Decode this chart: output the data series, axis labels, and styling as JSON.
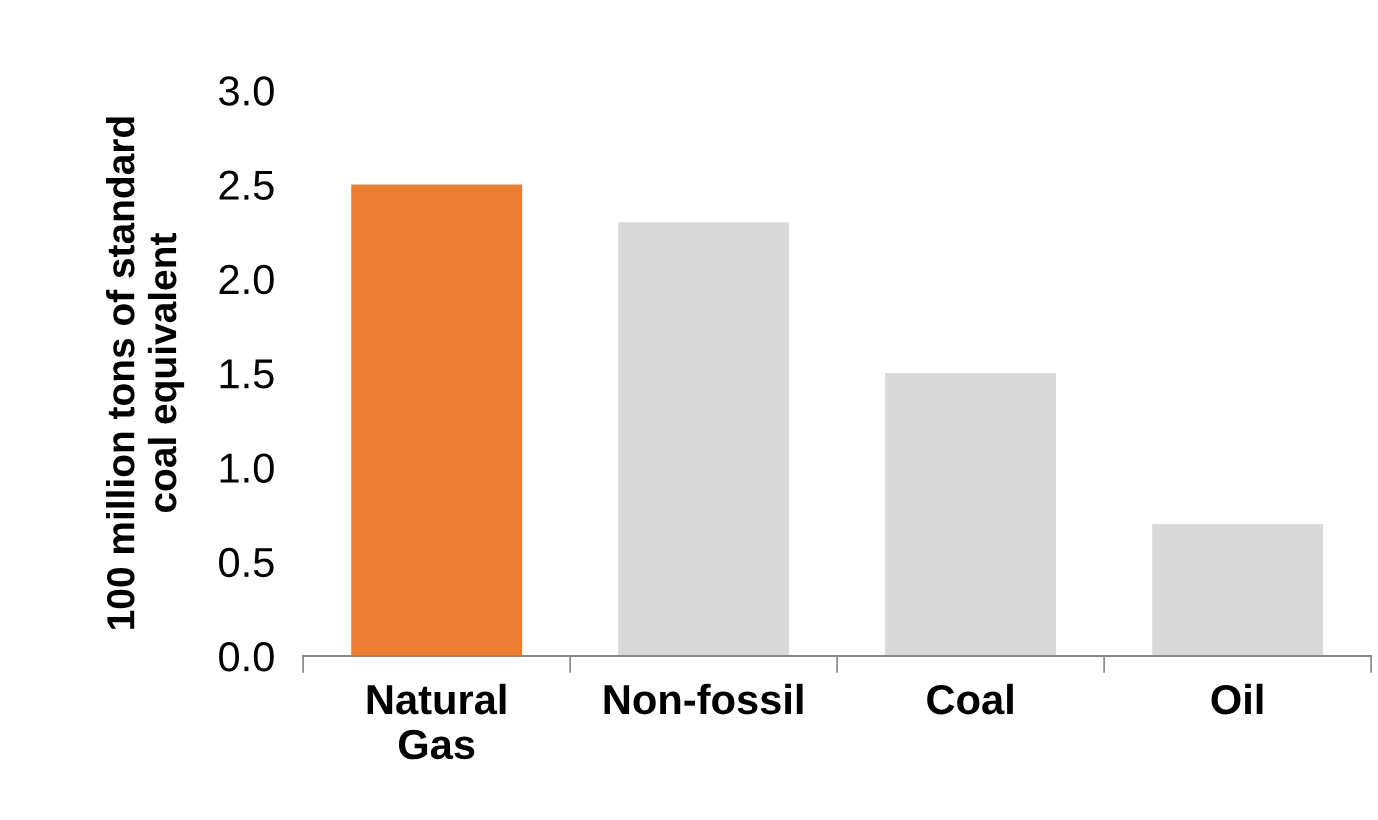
{
  "chart_data": {
    "type": "bar",
    "ylabel": "100 million tons of standard\ncoal equivalent",
    "categories": [
      "Natural\nGas",
      "Non-fossil",
      "Coal",
      "Oil"
    ],
    "values": [
      2.5,
      2.3,
      1.5,
      0.7
    ],
    "colors": [
      "#ed7d31",
      "#d9d9d9",
      "#d9d9d9",
      "#d9d9d9"
    ],
    "ylim": [
      0,
      3
    ],
    "yticks": [
      {
        "value": 0,
        "label": "0.0"
      },
      {
        "value": 0.5,
        "label": "0.5"
      },
      {
        "value": 1,
        "label": "1.0"
      },
      {
        "value": 1.5,
        "label": "1.5"
      },
      {
        "value": 2,
        "label": "2.0"
      },
      {
        "value": 2.5,
        "label": "2.5"
      },
      {
        "value": 3,
        "label": "3.0"
      }
    ],
    "grid": false,
    "legend": false
  }
}
